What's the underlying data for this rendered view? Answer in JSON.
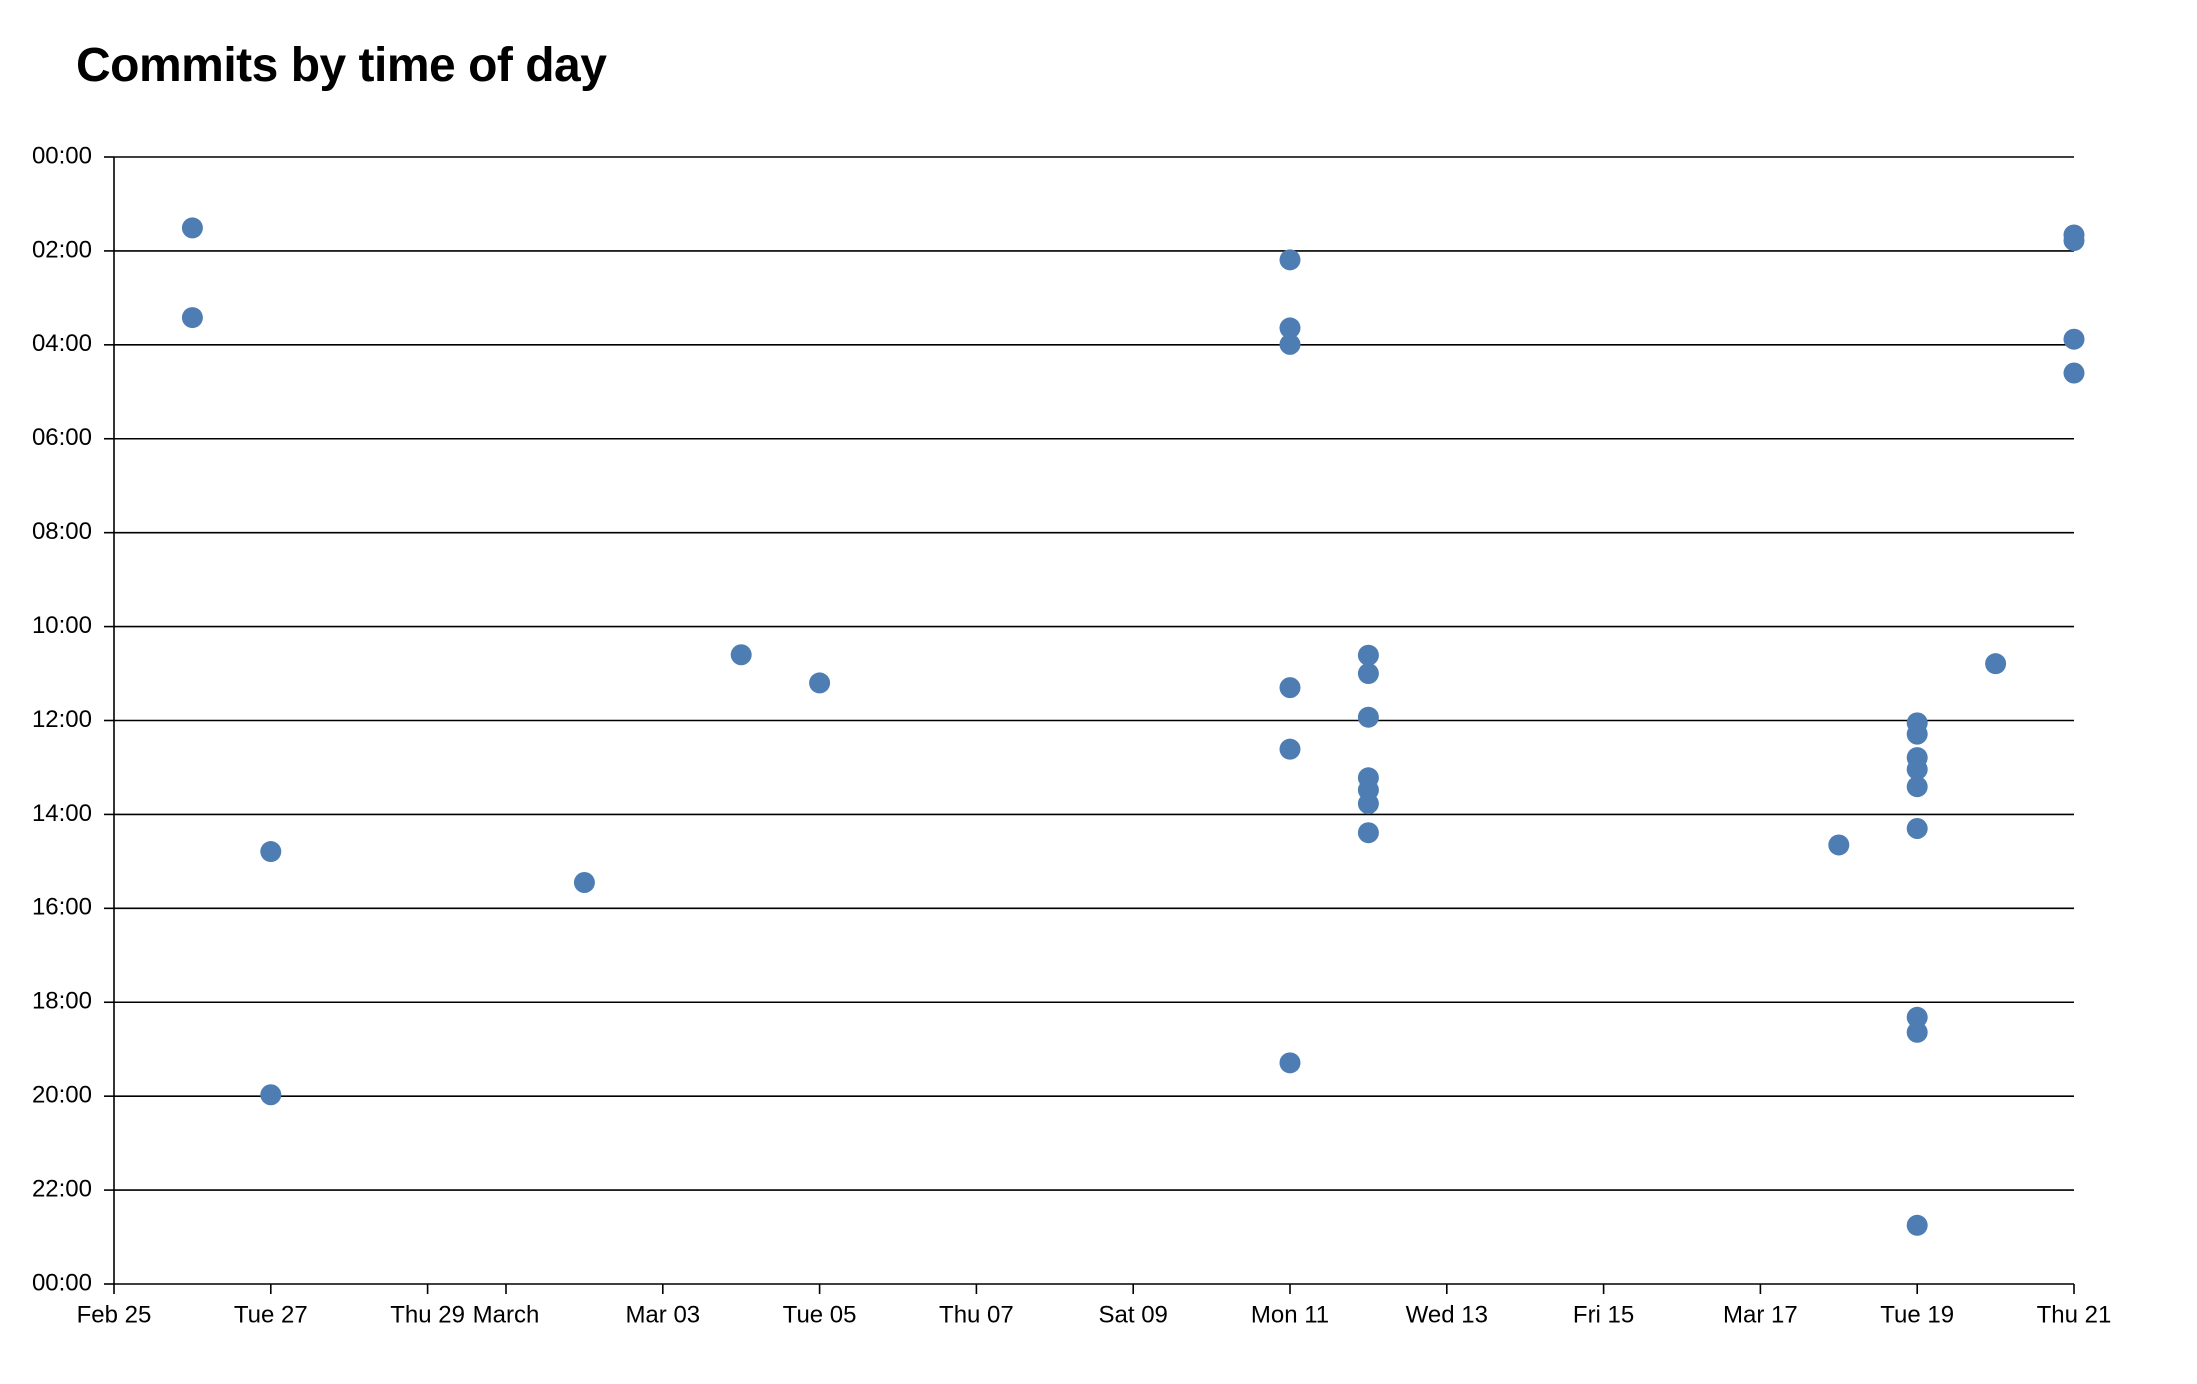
{
  "chart_data": {
    "type": "scatter",
    "title": "Commits by time of day",
    "grid": true,
    "legend": "none",
    "dot_color": "#4d7db3",
    "axis_color": "#000000",
    "x_axis": {
      "kind": "date",
      "domain_days": [
        0,
        25
      ],
      "start_label": "Feb 25",
      "end_label": "Thu 21",
      "ticks": [
        {
          "day": 0,
          "label": "Feb 25"
        },
        {
          "day": 2,
          "label": "Tue 27"
        },
        {
          "day": 4,
          "label": "Thu 29"
        },
        {
          "day": 5,
          "label": "March"
        },
        {
          "day": 7,
          "label": "Mar 03"
        },
        {
          "day": 9,
          "label": "Tue 05"
        },
        {
          "day": 11,
          "label": "Thu 07"
        },
        {
          "day": 13,
          "label": "Sat 09"
        },
        {
          "day": 15,
          "label": "Mon 11"
        },
        {
          "day": 17,
          "label": "Wed 13"
        },
        {
          "day": 19,
          "label": "Fri 15"
        },
        {
          "day": 21,
          "label": "Mar 17"
        },
        {
          "day": 23,
          "label": "Tue 19"
        },
        {
          "day": 25,
          "label": "Thu 21"
        }
      ]
    },
    "y_axis": {
      "kind": "time-of-day",
      "domain_hours": [
        0,
        24
      ],
      "inverted": true,
      "ticks": [
        {
          "hour": 0,
          "label": "00:00"
        },
        {
          "hour": 2,
          "label": "02:00"
        },
        {
          "hour": 4,
          "label": "04:00"
        },
        {
          "hour": 6,
          "label": "06:00"
        },
        {
          "hour": 8,
          "label": "08:00"
        },
        {
          "hour": 10,
          "label": "10:00"
        },
        {
          "hour": 12,
          "label": "12:00"
        },
        {
          "hour": 14,
          "label": "14:00"
        },
        {
          "hour": 16,
          "label": "16:00"
        },
        {
          "hour": 18,
          "label": "18:00"
        },
        {
          "hour": 20,
          "label": "20:00"
        },
        {
          "hour": 22,
          "label": "22:00"
        },
        {
          "hour": 24,
          "label": "00:00"
        }
      ]
    },
    "points": [
      {
        "date": "Feb 26",
        "day": 1,
        "time": "01:31",
        "hour": 1.51
      },
      {
        "date": "Feb 26",
        "day": 1,
        "time": "03:25",
        "hour": 3.42
      },
      {
        "date": "Feb 27",
        "day": 2,
        "time": "14:48",
        "hour": 14.79
      },
      {
        "date": "Feb 27",
        "day": 2,
        "time": "19:58",
        "hour": 19.97
      },
      {
        "date": "Mar 02",
        "day": 6,
        "time": "15:27",
        "hour": 15.45
      },
      {
        "date": "Mar 04",
        "day": 8,
        "time": "10:36",
        "hour": 10.6
      },
      {
        "date": "Mar 05",
        "day": 9,
        "time": "11:12",
        "hour": 11.2
      },
      {
        "date": "Mar 11",
        "day": 15,
        "time": "02:11",
        "hour": 2.19
      },
      {
        "date": "Mar 11",
        "day": 15,
        "time": "03:38",
        "hour": 3.64
      },
      {
        "date": "Mar 11",
        "day": 15,
        "time": "04:00",
        "hour": 3.99
      },
      {
        "date": "Mar 11",
        "day": 15,
        "time": "11:18",
        "hour": 11.3
      },
      {
        "date": "Mar 11",
        "day": 15,
        "time": "12:37",
        "hour": 12.61
      },
      {
        "date": "Mar 11",
        "day": 15,
        "time": "19:17",
        "hour": 19.29
      },
      {
        "date": "Mar 12",
        "day": 16,
        "time": "10:37",
        "hour": 10.61
      },
      {
        "date": "Mar 12",
        "day": 16,
        "time": "11:00",
        "hour": 11.0
      },
      {
        "date": "Mar 12",
        "day": 16,
        "time": "11:56",
        "hour": 11.93
      },
      {
        "date": "Mar 12",
        "day": 16,
        "time": "13:13",
        "hour": 13.22
      },
      {
        "date": "Mar 12",
        "day": 16,
        "time": "13:29",
        "hour": 13.48
      },
      {
        "date": "Mar 12",
        "day": 16,
        "time": "13:46",
        "hour": 13.77
      },
      {
        "date": "Mar 12",
        "day": 16,
        "time": "14:23",
        "hour": 14.39
      },
      {
        "date": "Mar 18",
        "day": 22,
        "time": "14:39",
        "hour": 14.65
      },
      {
        "date": "Mar 19",
        "day": 23,
        "time": "12:03",
        "hour": 12.05
      },
      {
        "date": "Mar 19",
        "day": 23,
        "time": "12:18",
        "hour": 12.29
      },
      {
        "date": "Mar 19",
        "day": 23,
        "time": "12:47",
        "hour": 12.79
      },
      {
        "date": "Mar 19",
        "day": 23,
        "time": "13:02",
        "hour": 13.04
      },
      {
        "date": "Mar 19",
        "day": 23,
        "time": "13:25",
        "hour": 13.41
      },
      {
        "date": "Mar 19",
        "day": 23,
        "time": "14:18",
        "hour": 14.3
      },
      {
        "date": "Mar 19",
        "day": 23,
        "time": "18:19",
        "hour": 18.32
      },
      {
        "date": "Mar 19",
        "day": 23,
        "time": "18:38",
        "hour": 18.64
      },
      {
        "date": "Mar 19",
        "day": 23,
        "time": "22:45",
        "hour": 22.75
      },
      {
        "date": "Mar 20",
        "day": 24,
        "time": "10:47",
        "hour": 10.79
      },
      {
        "date": "Mar 21",
        "day": 25,
        "time": "01:40",
        "hour": 1.66
      },
      {
        "date": "Mar 21",
        "day": 25,
        "time": "01:47",
        "hour": 1.78
      },
      {
        "date": "Mar 21",
        "day": 25,
        "time": "03:53",
        "hour": 3.88
      },
      {
        "date": "Mar 21",
        "day": 25,
        "time": "04:36",
        "hour": 4.6
      }
    ]
  }
}
